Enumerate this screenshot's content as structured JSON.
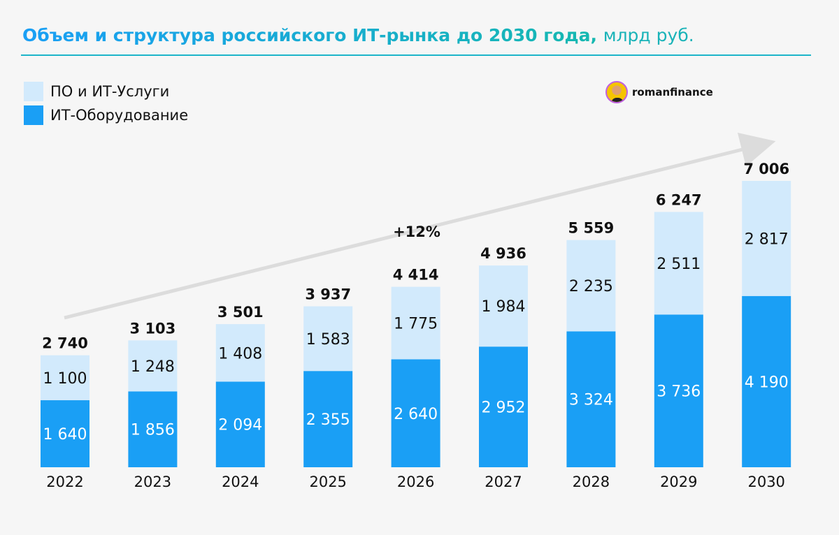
{
  "chart_data": {
    "type": "bar",
    "stacked": true,
    "title": "Объем и структура российского ИТ-рынка до 2030 года,",
    "unit": "млрд руб.",
    "categories": [
      "2022",
      "2023",
      "2024",
      "2025",
      "2026",
      "2027",
      "2028",
      "2029",
      "2030"
    ],
    "series": [
      {
        "name": "ИТ-Оборудование",
        "color": "#1a9ff5",
        "values": [
          1640,
          1856,
          2094,
          2355,
          2640,
          2952,
          3324,
          3736,
          4190
        ],
        "labels": [
          "1 640",
          "1 856",
          "2 094",
          "2 355",
          "2 640",
          "2 952",
          "3 324",
          "3 736",
          "4 190"
        ]
      },
      {
        "name": "ПО и ИТ-Услуги",
        "color": "#d2eafc",
        "values": [
          1100,
          1248,
          1408,
          1583,
          1775,
          1984,
          2235,
          2511,
          2817
        ],
        "labels": [
          "1 100",
          "1 248",
          "1 408",
          "1 583",
          "1 775",
          "1 984",
          "2 235",
          "2 511",
          "2 817"
        ]
      }
    ],
    "totals": [
      2740,
      3103,
      3501,
      3937,
      4414,
      4936,
      5559,
      6247,
      7006
    ],
    "total_labels": [
      "2 740",
      "3 103",
      "3 501",
      "3 937",
      "4 414",
      "4 936",
      "5 559",
      "6 247",
      "7 006"
    ],
    "annotation": "+12%",
    "legend_position": "top-left",
    "grid": false
  },
  "brand": "romanfinance"
}
